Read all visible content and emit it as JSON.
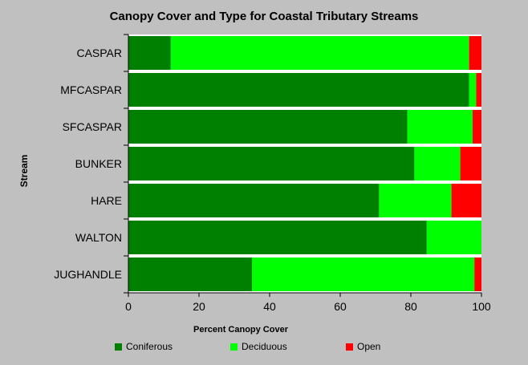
{
  "chart_data": {
    "type": "bar",
    "orientation": "horizontal",
    "stacked": true,
    "title": "Canopy Cover and Type for Coastal Tributary Streams",
    "xlabel": "Percent Canopy Cover",
    "ylabel": "Stream",
    "xlim": [
      0,
      100
    ],
    "xticks": [
      0,
      20,
      40,
      60,
      80,
      100
    ],
    "grid": false,
    "legend_position": "bottom",
    "categories": [
      "CASPAR",
      "MFCASPAR",
      "SFCASPAR",
      "BUNKER",
      "HARE",
      "WALTON",
      "JUGHANDLE"
    ],
    "series": [
      {
        "name": "Coniferous",
        "color": "#008000",
        "values": [
          12,
          96.5,
          79,
          81,
          71,
          84.5,
          35
        ]
      },
      {
        "name": "Deciduous",
        "color": "#00ff00",
        "values": [
          84.5,
          2,
          18.5,
          13,
          20.5,
          15.5,
          63
        ]
      },
      {
        "name": "Open",
        "color": "#ff0000",
        "values": [
          3.5,
          1.5,
          2.5,
          6,
          8.5,
          0,
          2
        ]
      }
    ]
  }
}
